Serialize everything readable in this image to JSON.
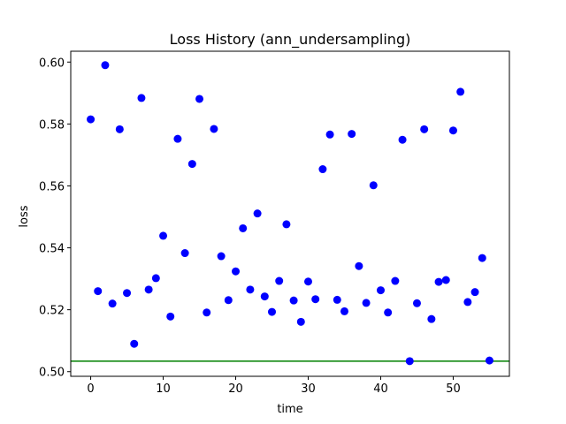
{
  "chart_data": {
    "type": "scatter",
    "title": "Loss History (ann_undersampling)",
    "xlabel": "time",
    "ylabel": "loss",
    "xlim": [
      -2.75,
      57.75
    ],
    "ylim": [
      0.4985,
      0.6035
    ],
    "xticks": [
      0,
      10,
      20,
      30,
      40,
      50
    ],
    "yticks": [
      0.5,
      0.52,
      0.54,
      0.56,
      0.58,
      0.6
    ],
    "ytick_labels": [
      "0.50",
      "0.52",
      "0.54",
      "0.56",
      "0.58",
      "0.60"
    ],
    "grid": false,
    "marker_color": "#0000ff",
    "hline": {
      "y": 0.5034,
      "color": "#008000"
    },
    "series": [
      {
        "x": [
          0,
          1,
          2,
          3,
          4,
          5,
          6,
          7,
          8,
          9,
          10,
          11,
          12,
          13,
          14,
          15,
          16,
          17,
          18,
          19,
          20,
          21,
          22,
          23,
          24,
          25,
          26,
          27,
          28,
          29,
          30,
          31,
          32,
          33,
          34,
          35,
          36,
          37,
          38,
          39,
          40,
          41,
          42,
          43,
          44,
          45,
          46,
          47,
          48,
          49,
          50,
          51,
          52,
          53,
          54,
          55
        ],
        "y": [
          0.5815,
          0.526,
          0.599,
          0.522,
          0.5783,
          0.5254,
          0.509,
          0.5884,
          0.5265,
          0.5302,
          0.5439,
          0.5178,
          0.5752,
          0.5383,
          0.5671,
          0.5881,
          0.5191,
          0.5784,
          0.5373,
          0.5231,
          0.5324,
          0.5463,
          0.5265,
          0.5511,
          0.5243,
          0.5193,
          0.5293,
          0.5476,
          0.523,
          0.5161,
          0.5291,
          0.5234,
          0.5654,
          0.5766,
          0.5232,
          0.5195,
          0.5768,
          0.5341,
          0.5222,
          0.5602,
          0.5263,
          0.5191,
          0.5293,
          0.5749,
          0.5034,
          0.5221,
          0.5783,
          0.517,
          0.529,
          0.5296,
          0.5779,
          0.5904,
          0.5225,
          0.5257,
          0.5367,
          0.5036
        ]
      }
    ]
  }
}
